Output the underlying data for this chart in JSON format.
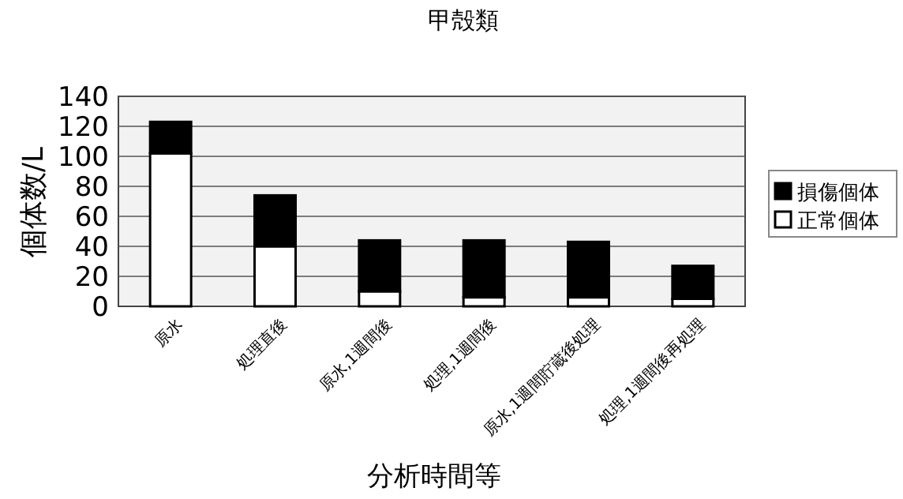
{
  "chart_data": {
    "type": "bar",
    "title": "甲殻類",
    "xlabel": "分析時間等",
    "ylabel": "個体数/L",
    "categories": [
      "原水",
      "処理直後",
      "原水,1週間後",
      "処理,1週間後",
      "原水,1週間貯蔵後処理",
      "処理,1週間後再処理"
    ],
    "series": [
      {
        "name": "正常個体",
        "color": "#ffffff",
        "values": [
          102,
          40,
          10,
          6,
          6,
          5
        ]
      },
      {
        "name": "損傷個体",
        "color": "#000000",
        "values": [
          21,
          34,
          34,
          38,
          37,
          22
        ]
      }
    ],
    "stacked": true,
    "ylim": [
      0,
      140
    ],
    "yticks": [
      0,
      20,
      40,
      60,
      80,
      100,
      120,
      140
    ],
    "grid": "y",
    "legend": "right"
  }
}
